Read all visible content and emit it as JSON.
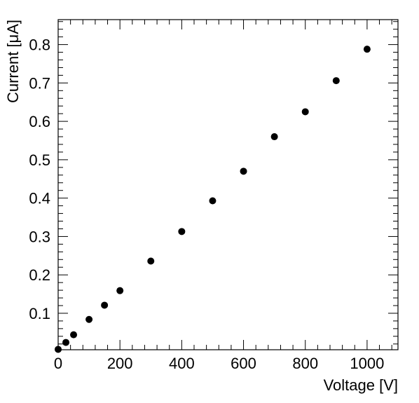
{
  "chart_data": {
    "type": "scatter",
    "xlabel": "Voltage [V]",
    "ylabel": "Current [μA]",
    "xlim": [
      0,
      1100
    ],
    "ylim": [
      0.005,
      0.865
    ],
    "x_ticks": [
      0,
      200,
      400,
      600,
      800,
      1000
    ],
    "y_ticks": [
      0.1,
      0.2,
      0.3,
      0.4,
      0.5,
      0.6,
      0.7,
      0.8
    ],
    "x_tick_labels": [
      "0",
      "200",
      "400",
      "600",
      "800",
      "1000"
    ],
    "y_tick_labels": [
      "0.1",
      "0.2",
      "0.3",
      "0.4",
      "0.5",
      "0.6",
      "0.7",
      "0.8"
    ],
    "grid": false,
    "marker_color": "#000000",
    "points": [
      {
        "x": 0,
        "y": 0.006
      },
      {
        "x": 25,
        "y": 0.024
      },
      {
        "x": 50,
        "y": 0.044
      },
      {
        "x": 100,
        "y": 0.084
      },
      {
        "x": 150,
        "y": 0.121
      },
      {
        "x": 200,
        "y": 0.159
      },
      {
        "x": 300,
        "y": 0.236
      },
      {
        "x": 400,
        "y": 0.313
      },
      {
        "x": 500,
        "y": 0.393
      },
      {
        "x": 600,
        "y": 0.47
      },
      {
        "x": 700,
        "y": 0.56
      },
      {
        "x": 800,
        "y": 0.625
      },
      {
        "x": 900,
        "y": 0.706
      },
      {
        "x": 1000,
        "y": 0.788
      }
    ]
  }
}
